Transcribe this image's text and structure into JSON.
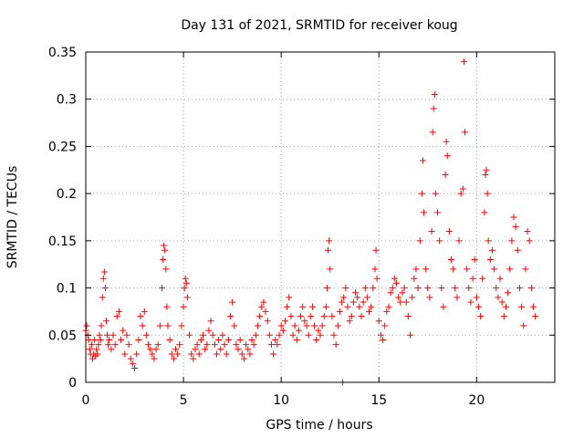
{
  "chart_data": {
    "type": "scatter",
    "title": "Day 131 of 2021, SRMTID for receiver koug",
    "xlabel": "GPS time / hours",
    "ylabel": "SRMTID / TECUs",
    "xlim": [
      0,
      24
    ],
    "ylim": [
      0,
      0.35
    ],
    "xticks": [
      0,
      5,
      10,
      15,
      20
    ],
    "yticks": [
      0,
      0.05,
      0.1,
      0.15,
      0.2,
      0.25,
      0.3,
      0.35
    ],
    "xtick_labels": [
      "0",
      "5",
      "10",
      "15",
      "20"
    ],
    "ytick_labels": [
      "0",
      "0.05",
      "0.1",
      "0.15",
      "0.2",
      "0.25",
      "0.3",
      "0.35"
    ],
    "grid": true,
    "marker": "plus",
    "color": "#ff0000",
    "series": [
      {
        "name": "SRMTID",
        "points": [
          [
            0.0,
            0.055
          ],
          [
            0.05,
            0.06
          ],
          [
            0.1,
            0.05
          ],
          [
            0.15,
            0.045
          ],
          [
            0.2,
            0.035
          ],
          [
            0.25,
            0.03
          ],
          [
            0.3,
            0.04
          ],
          [
            0.35,
            0.025
          ],
          [
            0.4,
            0.03
          ],
          [
            0.45,
            0.045
          ],
          [
            0.5,
            0.028
          ],
          [
            0.55,
            0.035
          ],
          [
            0.6,
            0.03
          ],
          [
            0.65,
            0.04
          ],
          [
            0.7,
            0.05
          ],
          [
            0.75,
            0.045
          ],
          [
            0.8,
            0.06
          ],
          [
            0.85,
            0.09
          ],
          [
            0.9,
            0.11
          ],
          [
            0.95,
            0.117
          ],
          [
            1.0,
            0.1
          ],
          [
            1.05,
            0.065
          ],
          [
            1.1,
            0.05
          ],
          [
            1.15,
            0.04
          ],
          [
            1.2,
            0.045
          ],
          [
            1.3,
            0.035
          ],
          [
            1.4,
            0.05
          ],
          [
            1.5,
            0.04
          ],
          [
            1.6,
            0.07
          ],
          [
            1.7,
            0.075
          ],
          [
            1.8,
            0.045
          ],
          [
            1.9,
            0.055
          ],
          [
            2.0,
            0.03
          ],
          [
            2.1,
            0.05
          ],
          [
            2.2,
            0.04
          ],
          [
            2.3,
            0.025
          ],
          [
            2.4,
            0.02
          ],
          [
            2.5,
            0.015
          ],
          [
            2.6,
            0.03
          ],
          [
            2.7,
            0.045
          ],
          [
            2.8,
            0.07
          ],
          [
            2.9,
            0.06
          ],
          [
            3.0,
            0.075
          ],
          [
            3.1,
            0.05
          ],
          [
            3.2,
            0.04
          ],
          [
            3.3,
            0.035
          ],
          [
            3.4,
            0.03
          ],
          [
            3.5,
            0.025
          ],
          [
            3.6,
            0.035
          ],
          [
            3.7,
            0.04
          ],
          [
            3.8,
            0.06
          ],
          [
            3.9,
            0.1
          ],
          [
            3.95,
            0.13
          ],
          [
            4.0,
            0.145
          ],
          [
            4.05,
            0.14
          ],
          [
            4.1,
            0.12
          ],
          [
            4.15,
            0.08
          ],
          [
            4.2,
            0.06
          ],
          [
            4.3,
            0.045
          ],
          [
            4.4,
            0.03
          ],
          [
            4.5,
            0.025
          ],
          [
            4.6,
            0.035
          ],
          [
            4.7,
            0.03
          ],
          [
            4.8,
            0.04
          ],
          [
            4.9,
            0.06
          ],
          [
            5.0,
            0.08
          ],
          [
            5.05,
            0.1
          ],
          [
            5.1,
            0.11
          ],
          [
            5.15,
            0.105
          ],
          [
            5.2,
            0.09
          ],
          [
            5.3,
            0.05
          ],
          [
            5.4,
            0.03
          ],
          [
            5.5,
            0.025
          ],
          [
            5.6,
            0.035
          ],
          [
            5.7,
            0.04
          ],
          [
            5.8,
            0.03
          ],
          [
            5.9,
            0.045
          ],
          [
            6.0,
            0.05
          ],
          [
            6.1,
            0.035
          ],
          [
            6.2,
            0.04
          ],
          [
            6.3,
            0.055
          ],
          [
            6.4,
            0.065
          ],
          [
            6.5,
            0.05
          ],
          [
            6.6,
            0.04
          ],
          [
            6.7,
            0.03
          ],
          [
            6.8,
            0.045
          ],
          [
            6.9,
            0.035
          ],
          [
            7.0,
            0.05
          ],
          [
            7.1,
            0.04
          ],
          [
            7.2,
            0.03
          ],
          [
            7.3,
            0.045
          ],
          [
            7.4,
            0.07
          ],
          [
            7.5,
            0.085
          ],
          [
            7.6,
            0.06
          ],
          [
            7.7,
            0.04
          ],
          [
            7.8,
            0.035
          ],
          [
            7.9,
            0.045
          ],
          [
            8.0,
            0.03
          ],
          [
            8.1,
            0.025
          ],
          [
            8.2,
            0.04
          ],
          [
            8.3,
            0.035
          ],
          [
            8.4,
            0.03
          ],
          [
            8.5,
            0.045
          ],
          [
            8.6,
            0.04
          ],
          [
            8.7,
            0.05
          ],
          [
            8.8,
            0.06
          ],
          [
            8.9,
            0.07
          ],
          [
            9.0,
            0.08
          ],
          [
            9.1,
            0.085
          ],
          [
            9.2,
            0.075
          ],
          [
            9.3,
            0.065
          ],
          [
            9.4,
            0.05
          ],
          [
            9.5,
            0.04
          ],
          [
            9.6,
            0.03
          ],
          [
            9.7,
            0.045
          ],
          [
            9.8,
            0.04
          ],
          [
            9.9,
            0.05
          ],
          [
            10.0,
            0.06
          ],
          [
            10.1,
            0.055
          ],
          [
            10.2,
            0.065
          ],
          [
            10.3,
            0.08
          ],
          [
            10.4,
            0.09
          ],
          [
            10.5,
            0.07
          ],
          [
            10.6,
            0.05
          ],
          [
            10.7,
            0.06
          ],
          [
            10.8,
            0.045
          ],
          [
            10.9,
            0.055
          ],
          [
            11.0,
            0.07
          ],
          [
            11.1,
            0.08
          ],
          [
            11.2,
            0.065
          ],
          [
            11.3,
            0.06
          ],
          [
            11.4,
            0.05
          ],
          [
            11.5,
            0.07
          ],
          [
            11.6,
            0.08
          ],
          [
            11.7,
            0.06
          ],
          [
            11.8,
            0.045
          ],
          [
            11.9,
            0.055
          ],
          [
            12.0,
            0.05
          ],
          [
            12.1,
            0.06
          ],
          [
            12.2,
            0.07
          ],
          [
            12.3,
            0.08
          ],
          [
            12.35,
            0.1
          ],
          [
            12.4,
            0.14
          ],
          [
            12.45,
            0.15
          ],
          [
            12.5,
            0.12
          ],
          [
            12.6,
            0.07
          ],
          [
            12.7,
            0.05
          ],
          [
            12.8,
            0.04
          ],
          [
            12.9,
            0.06
          ],
          [
            13.0,
            0.075
          ],
          [
            13.1,
            0.085
          ],
          [
            13.15,
            0.0
          ],
          [
            13.2,
            0.09
          ],
          [
            13.3,
            0.1
          ],
          [
            13.4,
            0.08
          ],
          [
            13.5,
            0.065
          ],
          [
            13.6,
            0.07
          ],
          [
            13.7,
            0.085
          ],
          [
            13.8,
            0.095
          ],
          [
            13.9,
            0.09
          ],
          [
            14.0,
            0.08
          ],
          [
            14.1,
            0.07
          ],
          [
            14.2,
            0.085
          ],
          [
            14.3,
            0.1
          ],
          [
            14.4,
            0.09
          ],
          [
            14.5,
            0.075
          ],
          [
            14.6,
            0.08
          ],
          [
            14.7,
            0.1
          ],
          [
            14.8,
            0.12
          ],
          [
            14.85,
            0.14
          ],
          [
            14.9,
            0.11
          ],
          [
            15.0,
            0.065
          ],
          [
            15.1,
            0.05
          ],
          [
            15.2,
            0.045
          ],
          [
            15.3,
            0.06
          ],
          [
            15.4,
            0.075
          ],
          [
            15.5,
            0.08
          ],
          [
            15.6,
            0.095
          ],
          [
            15.7,
            0.1
          ],
          [
            15.8,
            0.11
          ],
          [
            15.9,
            0.105
          ],
          [
            16.0,
            0.09
          ],
          [
            16.1,
            0.085
          ],
          [
            16.2,
            0.095
          ],
          [
            16.3,
            0.1
          ],
          [
            16.4,
            0.085
          ],
          [
            16.5,
            0.07
          ],
          [
            16.6,
            0.05
          ],
          [
            16.7,
            0.09
          ],
          [
            16.8,
            0.11
          ],
          [
            16.9,
            0.12
          ],
          [
            17.0,
            0.1
          ],
          [
            17.1,
            0.15
          ],
          [
            17.2,
            0.2
          ],
          [
            17.25,
            0.235
          ],
          [
            17.3,
            0.18
          ],
          [
            17.4,
            0.12
          ],
          [
            17.5,
            0.1
          ],
          [
            17.6,
            0.09
          ],
          [
            17.7,
            0.16
          ],
          [
            17.75,
            0.265
          ],
          [
            17.8,
            0.29
          ],
          [
            17.85,
            0.305
          ],
          [
            17.9,
            0.2
          ],
          [
            18.0,
            0.18
          ],
          [
            18.1,
            0.15
          ],
          [
            18.2,
            0.1
          ],
          [
            18.3,
            0.08
          ],
          [
            18.4,
            0.22
          ],
          [
            18.45,
            0.255
          ],
          [
            18.5,
            0.24
          ],
          [
            18.6,
            0.16
          ],
          [
            18.7,
            0.13
          ],
          [
            18.8,
            0.12
          ],
          [
            18.9,
            0.1
          ],
          [
            19.0,
            0.09
          ],
          [
            19.1,
            0.15
          ],
          [
            19.2,
            0.2
          ],
          [
            19.3,
            0.205
          ],
          [
            19.35,
            0.34
          ],
          [
            19.4,
            0.265
          ],
          [
            19.5,
            0.12
          ],
          [
            19.6,
            0.1
          ],
          [
            19.7,
            0.085
          ],
          [
            19.8,
            0.11
          ],
          [
            19.9,
            0.13
          ],
          [
            20.0,
            0.09
          ],
          [
            20.1,
            0.08
          ],
          [
            20.2,
            0.07
          ],
          [
            20.3,
            0.11
          ],
          [
            20.4,
            0.18
          ],
          [
            20.45,
            0.22
          ],
          [
            20.5,
            0.225
          ],
          [
            20.55,
            0.2
          ],
          [
            20.6,
            0.15
          ],
          [
            20.7,
            0.13
          ],
          [
            20.8,
            0.14
          ],
          [
            20.9,
            0.12
          ],
          [
            21.0,
            0.1
          ],
          [
            21.1,
            0.09
          ],
          [
            21.2,
            0.11
          ],
          [
            21.3,
            0.085
          ],
          [
            21.4,
            0.07
          ],
          [
            21.5,
            0.08
          ],
          [
            21.6,
            0.095
          ],
          [
            21.7,
            0.12
          ],
          [
            21.8,
            0.15
          ],
          [
            21.9,
            0.175
          ],
          [
            22.0,
            0.165
          ],
          [
            22.1,
            0.14
          ],
          [
            22.2,
            0.1
          ],
          [
            22.3,
            0.08
          ],
          [
            22.4,
            0.06
          ],
          [
            22.5,
            0.12
          ],
          [
            22.6,
            0.16
          ],
          [
            22.7,
            0.15
          ],
          [
            22.8,
            0.1
          ],
          [
            22.9,
            0.08
          ],
          [
            23.0,
            0.07
          ]
        ]
      }
    ]
  }
}
